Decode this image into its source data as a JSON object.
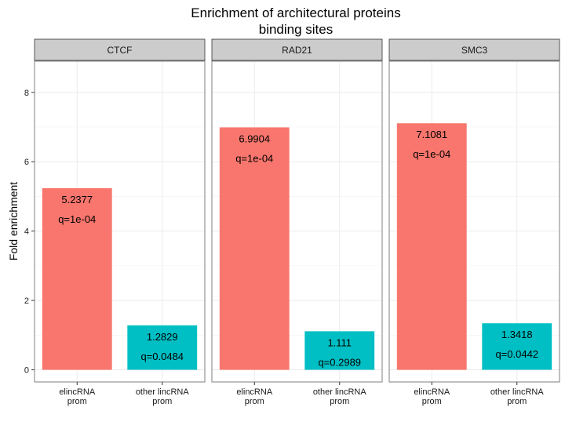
{
  "chart_data": {
    "type": "bar",
    "title": [
      "Enrichment of architectural proteins",
      "binding sites"
    ],
    "ylabel": "Fold enrichment",
    "xlabel": "",
    "ylim": [
      -0.35,
      8.9
    ],
    "yticks": [
      0,
      2,
      4,
      6,
      8
    ],
    "categories": [
      [
        "elincRNA",
        "prom"
      ],
      [
        "other lincRNA",
        "prom"
      ]
    ],
    "category_colors": [
      "#F8766D",
      "#00BFC4"
    ],
    "grid": true,
    "panels": [
      {
        "name": "CTCF",
        "bars": [
          {
            "value": 5.2377,
            "label": "5.2377",
            "q": "q=1e-04"
          },
          {
            "value": 1.2829,
            "label": "1.2829",
            "q": "q=0.0484"
          }
        ]
      },
      {
        "name": "RAD21",
        "bars": [
          {
            "value": 6.9904,
            "label": "6.9904",
            "q": "q=1e-04"
          },
          {
            "value": 1.111,
            "label": "1.111",
            "q": "q=0.2989"
          }
        ]
      },
      {
        "name": "SMC3",
        "bars": [
          {
            "value": 7.1081,
            "label": "7.1081",
            "q": "q=1e-04"
          },
          {
            "value": 1.3418,
            "label": "1.3418",
            "q": "q=0.0442"
          }
        ]
      }
    ]
  }
}
